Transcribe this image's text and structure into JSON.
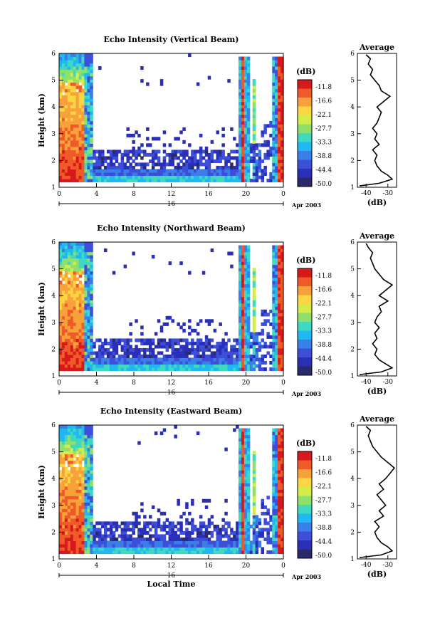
{
  "chart_data": [
    {
      "type": "heatmap",
      "title": "Echo Intensity (Vertical Beam)",
      "ylabel": "Height (km)",
      "xlabel": "",
      "x_ticks": [
        "0",
        "4",
        "8",
        "12",
        "16",
        "20",
        "0"
      ],
      "y_ticks": [
        "1",
        "2",
        "3",
        "4",
        "5",
        "6"
      ],
      "date_label": "16",
      "date_right": "Apr 2003",
      "colorbar_unit": "(dB)",
      "colorbar_ticks": [
        "-11.8",
        "-16.6",
        "-22.1",
        "-27.7",
        "-33.3",
        "-38.8",
        "-44.4",
        "-50.0"
      ],
      "xlim": [
        0,
        24
      ],
      "ylim": [
        1,
        6
      ],
      "profile": {
        "title": "Average",
        "xlabel": "(dB)",
        "x_ticks": [
          "-40",
          "-30"
        ],
        "y_ticks": [
          "1",
          "2",
          "3",
          "4",
          "5",
          "6"
        ],
        "xlim": [
          -44,
          -26
        ],
        "heights": [
          1.05,
          1.15,
          1.3,
          1.45,
          1.6,
          1.8,
          2.0,
          2.2,
          2.4,
          2.6,
          2.8,
          3.0,
          3.2,
          3.4,
          3.6,
          3.8,
          4.0,
          4.2,
          4.4,
          4.6,
          4.8,
          5.0,
          5.2,
          5.4,
          5.6,
          5.8,
          5.95
        ],
        "values": [
          -43,
          -34,
          -28,
          -30,
          -33,
          -35,
          -36,
          -35,
          -37,
          -34,
          -36,
          -35,
          -37,
          -35,
          -34,
          -33,
          -35,
          -32,
          -29,
          -33,
          -34,
          -36,
          -38,
          -37,
          -39,
          -38,
          -40
        ]
      }
    },
    {
      "type": "heatmap",
      "title": "Echo Intensity (Northward Beam)",
      "ylabel": "Height (km)",
      "xlabel": "",
      "x_ticks": [
        "0",
        "4",
        "8",
        "12",
        "16",
        "20",
        "0"
      ],
      "y_ticks": [
        "1",
        "2",
        "3",
        "4",
        "5",
        "6"
      ],
      "date_label": "16",
      "date_right": "Apr 2003",
      "colorbar_unit": "(dB)",
      "colorbar_ticks": [
        "-11.8",
        "-16.6",
        "-22.1",
        "-27.7",
        "-33.3",
        "-38.8",
        "-44.4",
        "-50.0"
      ],
      "xlim": [
        0,
        24
      ],
      "ylim": [
        1,
        6
      ],
      "profile": {
        "title": "Average",
        "xlabel": "(dB)",
        "x_ticks": [
          "-40",
          "-30"
        ],
        "y_ticks": [
          "1",
          "2",
          "3",
          "4",
          "5",
          "6"
        ],
        "xlim": [
          -44,
          -26
        ],
        "heights": [
          1.05,
          1.15,
          1.3,
          1.45,
          1.6,
          1.8,
          2.0,
          2.2,
          2.4,
          2.6,
          2.8,
          3.0,
          3.2,
          3.4,
          3.6,
          3.8,
          4.0,
          4.2,
          4.4,
          4.6,
          4.8,
          5.0,
          5.2,
          5.4,
          5.6,
          5.8,
          5.95
        ],
        "values": [
          -43,
          -33,
          -28,
          -31,
          -34,
          -36,
          -35,
          -37,
          -35,
          -36,
          -34,
          -36,
          -35,
          -33,
          -34,
          -30,
          -34,
          -31,
          -28,
          -32,
          -34,
          -36,
          -37,
          -38,
          -37,
          -39,
          -40
        ]
      }
    },
    {
      "type": "heatmap",
      "title": "Echo Intensity (Eastward Beam)",
      "ylabel": "Height (km)",
      "xlabel": "Local Time",
      "x_ticks": [
        "0",
        "4",
        "8",
        "12",
        "16",
        "20",
        "0"
      ],
      "y_ticks": [
        "1",
        "2",
        "3",
        "4",
        "5",
        "6"
      ],
      "date_label": "16",
      "date_right": "Apr 2003",
      "colorbar_unit": "(dB)",
      "colorbar_ticks": [
        "-11.8",
        "-16.6",
        "-22.1",
        "-27.7",
        "-33.3",
        "-38.8",
        "-44.4",
        "-50.0"
      ],
      "xlim": [
        0,
        24
      ],
      "ylim": [
        1,
        6
      ],
      "profile": {
        "title": "Average",
        "xlabel": "(dB)",
        "x_ticks": [
          "-40",
          "-30"
        ],
        "y_ticks": [
          "1",
          "2",
          "3",
          "4",
          "5",
          "6"
        ],
        "xlim": [
          -44,
          -26
        ],
        "heights": [
          1.05,
          1.15,
          1.3,
          1.45,
          1.6,
          1.8,
          2.0,
          2.2,
          2.4,
          2.6,
          2.8,
          3.0,
          3.2,
          3.4,
          3.6,
          3.8,
          4.0,
          4.2,
          4.4,
          4.6,
          4.8,
          5.0,
          5.2,
          5.4,
          5.6,
          5.8,
          5.95
        ],
        "values": [
          -43,
          -33,
          -28,
          -30,
          -33,
          -35,
          -36,
          -34,
          -36,
          -32,
          -34,
          -31,
          -33,
          -35,
          -32,
          -34,
          -31,
          -29,
          -27,
          -30,
          -33,
          -35,
          -37,
          -38,
          -39,
          -38,
          -40
        ]
      }
    }
  ],
  "colors": {
    "scale": [
      "#d7191c",
      "#f05a28",
      "#f8a13a",
      "#fbd542",
      "#d4ec4a",
      "#8fe06a",
      "#3fd8c0",
      "#20b8f0",
      "#3a7ee8",
      "#3d4fd8",
      "#2a2fb8",
      "#2a2a6a"
    ]
  }
}
